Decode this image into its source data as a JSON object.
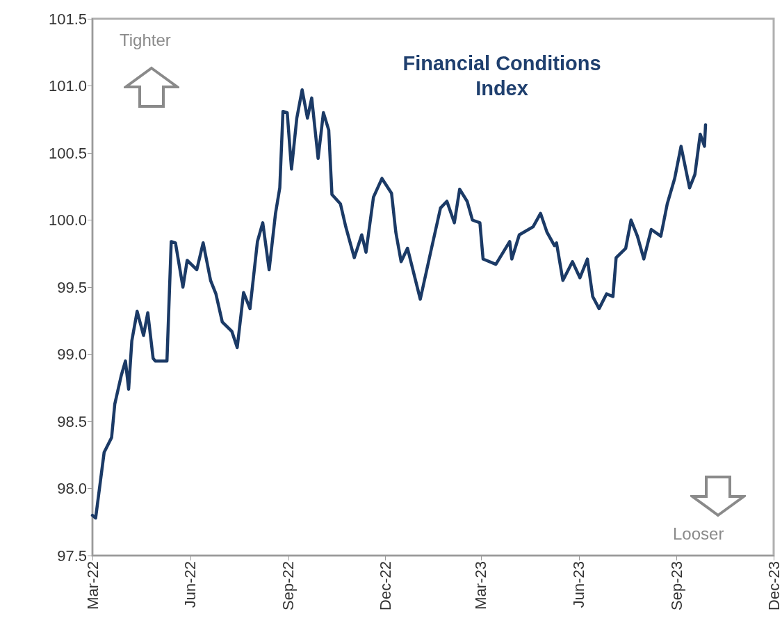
{
  "chart_data": {
    "type": "line",
    "title": "Financial Conditions\nIndex",
    "annotations": [
      "Tighter",
      "Looser"
    ],
    "x": [
      "2022-03-01",
      "2022-03-04",
      "2022-03-12",
      "2022-03-19",
      "2022-03-22",
      "2022-03-28",
      "2022-04-01",
      "2022-04-04",
      "2022-04-07",
      "2022-04-12",
      "2022-04-18",
      "2022-04-22",
      "2022-04-27",
      "2022-04-29",
      "2022-05-10",
      "2022-05-14",
      "2022-05-18",
      "2022-05-25",
      "2022-05-29",
      "2022-06-07",
      "2022-06-13",
      "2022-06-20",
      "2022-06-25",
      "2022-07-01",
      "2022-07-10",
      "2022-07-15",
      "2022-07-21",
      "2022-07-27",
      "2022-08-03",
      "2022-08-08",
      "2022-08-14",
      "2022-08-20",
      "2022-08-24",
      "2022-08-27",
      "2022-08-31",
      "2022-09-04",
      "2022-09-09",
      "2022-09-14",
      "2022-09-19",
      "2022-09-23",
      "2022-09-29",
      "2022-10-04",
      "2022-10-09",
      "2022-10-12",
      "2022-10-20",
      "2022-10-25",
      "2022-11-02",
      "2022-11-09",
      "2022-11-13",
      "2022-11-20",
      "2022-11-28",
      "2022-12-07",
      "2022-12-11",
      "2022-12-16",
      "2022-12-22",
      "2023-01-03",
      "2023-01-13",
      "2023-01-22",
      "2023-01-28",
      "2023-02-04",
      "2023-02-09",
      "2023-02-16",
      "2023-02-21",
      "2023-02-28",
      "2023-03-03",
      "2023-03-15",
      "2023-03-28",
      "2023-03-30",
      "2023-04-06",
      "2023-04-19",
      "2023-04-26",
      "2023-05-02",
      "2023-05-09",
      "2023-05-11",
      "2023-05-17",
      "2023-05-26",
      "2023-06-02",
      "2023-06-09",
      "2023-06-14",
      "2023-06-20",
      "2023-06-27",
      "2023-07-03",
      "2023-07-06",
      "2023-07-15",
      "2023-07-20",
      "2023-07-26",
      "2023-08-01",
      "2023-08-08",
      "2023-08-17",
      "2023-08-23",
      "2023-08-30",
      "2023-09-05",
      "2023-09-13",
      "2023-09-18",
      "2023-09-23",
      "2023-09-27",
      "2023-09-28"
    ],
    "series": [
      {
        "color": "#1b3a66",
        "values": [
          97.8,
          97.78,
          98.27,
          98.38,
          98.63,
          98.84,
          98.95,
          98.74,
          99.1,
          99.32,
          99.14,
          99.31,
          98.97,
          98.95,
          98.95,
          99.84,
          99.83,
          99.5,
          99.7,
          99.63,
          99.83,
          99.55,
          99.45,
          99.24,
          99.17,
          99.05,
          99.46,
          99.34,
          99.84,
          99.98,
          99.63,
          100.05,
          100.24,
          100.81,
          100.8,
          100.38,
          100.76,
          100.97,
          100.76,
          100.91,
          100.46,
          100.8,
          100.67,
          100.19,
          100.12,
          99.95,
          99.72,
          99.89,
          99.76,
          100.17,
          100.31,
          100.2,
          99.91,
          99.69,
          99.79,
          99.41,
          99.77,
          100.09,
          100.14,
          99.98,
          100.23,
          100.14,
          100.0,
          99.98,
          99.71,
          99.67,
          99.84,
          99.71,
          99.89,
          99.95,
          100.05,
          99.91,
          99.81,
          99.83,
          99.55,
          99.69,
          99.57,
          99.71,
          99.43,
          99.34,
          99.45,
          99.43,
          99.72,
          99.79,
          100.0,
          99.88,
          99.71,
          99.93,
          99.88,
          100.12,
          100.31,
          100.55,
          100.24,
          100.34,
          100.64,
          100.55,
          100.71
        ]
      }
    ],
    "xlim": [
      "2022-03-01",
      "2023-12-01"
    ],
    "xticks": [
      {
        "value": "2022-03-01",
        "label": "Mar-22"
      },
      {
        "value": "2022-06-01",
        "label": "Jun-22"
      },
      {
        "value": "2022-09-01",
        "label": "Sep-22"
      },
      {
        "value": "2022-12-01",
        "label": "Dec-22"
      },
      {
        "value": "2023-03-01",
        "label": "Mar-23"
      },
      {
        "value": "2023-06-01",
        "label": "Jun-23"
      },
      {
        "value": "2023-09-01",
        "label": "Sep-23"
      },
      {
        "value": "2023-12-01",
        "label": "Dec-23"
      }
    ],
    "ylim": [
      97.5,
      101.5
    ],
    "yticks": [
      {
        "value": 97.5,
        "label": "97.5"
      },
      {
        "value": 98,
        "label": "98.0"
      },
      {
        "value": 98.5,
        "label": "98.5"
      },
      {
        "value": 99,
        "label": "99.0"
      },
      {
        "value": 99.5,
        "label": "99.5"
      },
      {
        "value": 100,
        "label": "100.0"
      },
      {
        "value": 100.5,
        "label": "100.5"
      },
      {
        "value": 101,
        "label": "101.0"
      },
      {
        "value": 101.5,
        "label": "101.5"
      }
    ],
    "grid": false,
    "marker": "none",
    "line_style": "solid"
  }
}
